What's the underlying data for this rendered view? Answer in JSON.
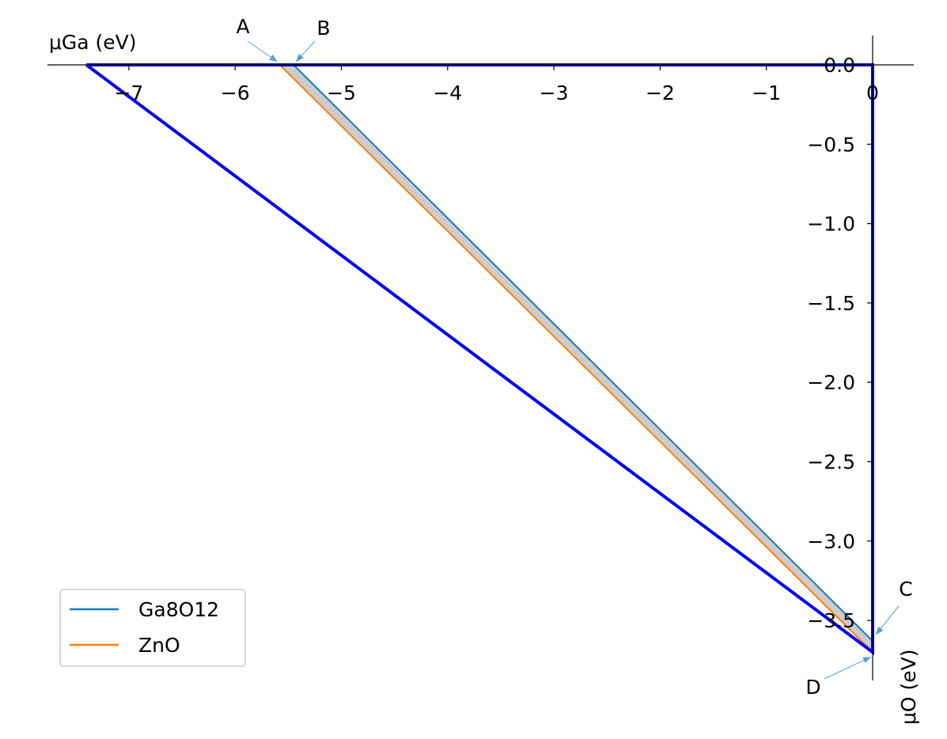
{
  "chart_data": {
    "type": "line",
    "xlabel": "μGa (eV)",
    "ylabel": "μO (eV)",
    "xlim": [
      -7.4,
      0
    ],
    "ylim": [
      -3.7,
      0
    ],
    "xticks": [
      -7,
      -6,
      -5,
      -4,
      -3,
      -2,
      -1,
      0
    ],
    "xtick_labels": [
      "−7",
      "−6",
      "−5",
      "−4",
      "−3",
      "−2",
      "−1",
      "0"
    ],
    "yticks": [
      0.0,
      -0.5,
      -1.0,
      -1.5,
      -2.0,
      -2.5,
      -3.0,
      -3.5
    ],
    "ytick_labels": [
      "0.0",
      "−0.5",
      "−1.0",
      "−1.5",
      "−2.0",
      "−2.5",
      "−3.0",
      "−3.5"
    ],
    "grid": false,
    "legend_position": "lower-left",
    "series": [
      {
        "name": "Ga8O12",
        "color": "#1f77b4",
        "x": [
          -5.45,
          0
        ],
        "y": [
          0,
          -3.63
        ]
      },
      {
        "name": "ZnO",
        "color": "#ff7f0e",
        "x": [
          -5.58,
          0
        ],
        "y": [
          0,
          -3.7
        ]
      }
    ],
    "boundary": {
      "color": "#0000ee",
      "x": [
        -7.4,
        0,
        0,
        -7.4
      ],
      "y": [
        0,
        0,
        -3.7,
        0
      ]
    },
    "stable_region": {
      "fill": "#cccccc",
      "edge": "#5b9bd5",
      "x": [
        -5.58,
        -5.45,
        0,
        0
      ],
      "y": [
        0,
        0,
        -3.63,
        -3.7
      ]
    },
    "annotations": [
      {
        "label": "A",
        "x": -5.58,
        "y": 0
      },
      {
        "label": "B",
        "x": -5.45,
        "y": 0
      },
      {
        "label": "C",
        "x": 0,
        "y": -3.63
      },
      {
        "label": "D",
        "x": 0,
        "y": -3.7
      }
    ]
  }
}
